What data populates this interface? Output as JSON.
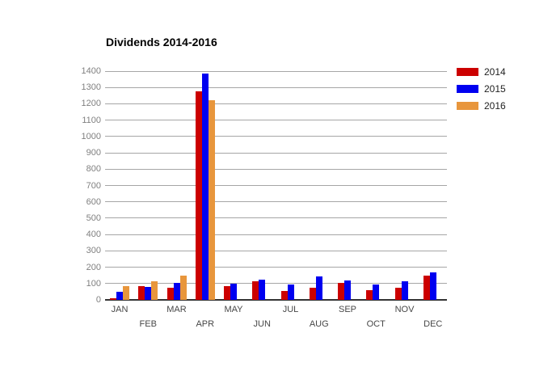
{
  "title": "Dividends 2014-2016",
  "chart_data": {
    "type": "bar",
    "title": "Dividends 2014-2016",
    "categories": [
      "JAN",
      "FEB",
      "MAR",
      "APR",
      "MAY",
      "JUN",
      "JUL",
      "AUG",
      "SEP",
      "OCT",
      "NOV",
      "DEC"
    ],
    "series": [
      {
        "name": "2014",
        "color": "#cc0000",
        "values": [
          10,
          85,
          75,
          1275,
          85,
          115,
          55,
          75,
          105,
          60,
          75,
          150
        ]
      },
      {
        "name": "2015",
        "color": "#0000f0",
        "values": [
          50,
          80,
          105,
          1385,
          100,
          125,
          95,
          145,
          120,
          95,
          115,
          170
        ]
      },
      {
        "name": "2016",
        "color": "#e8963c",
        "values": [
          85,
          115,
          150,
          1220,
          null,
          null,
          null,
          null,
          null,
          null,
          null,
          null
        ]
      }
    ],
    "xlabel": "",
    "ylabel": "",
    "ylim": [
      0,
      1400
    ],
    "ytick_step": 100,
    "grid": true,
    "legend_position": "right",
    "x_labels_staggered": true
  },
  "legend": {
    "items": [
      {
        "label": "2014",
        "color": "#cc0000"
      },
      {
        "label": "2015",
        "color": "#0000f0"
      },
      {
        "label": "2016",
        "color": "#e8963c"
      }
    ]
  },
  "colors": {
    "background": "#ffffff",
    "gridline": "#a6a6a6",
    "axis_line": "#333333",
    "y_tick_text": "#808080",
    "x_tick_text": "#474747",
    "series_2014": "#cc0000",
    "series_2015": "#0000f0",
    "series_2016": "#e8963c"
  }
}
